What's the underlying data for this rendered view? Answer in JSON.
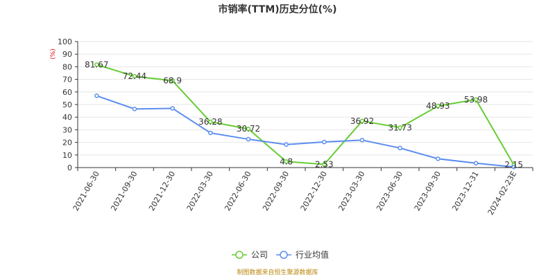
{
  "colors": {
    "company": "#66cc33",
    "industry": "#5b8def",
    "grid": "#e6e6e6",
    "axis": "#333333",
    "unit": "#e60000",
    "source": "#b8860b"
  },
  "chart_data": {
    "type": "line",
    "title": "市销率(TTM)历史分位(%)",
    "ylabel": "(%)",
    "xlabel": "",
    "ylim": [
      0,
      100
    ],
    "yticks": [
      0,
      10,
      20,
      30,
      40,
      50,
      60,
      70,
      80,
      90,
      100
    ],
    "grid": true,
    "legend_position": "bottom-center",
    "categories": [
      "2021-06-30",
      "2021-09-30",
      "2021-12-30",
      "2022-03-30",
      "2022-06-30",
      "2022-09-30",
      "2022-12-30",
      "2023-03-30",
      "2023-06-30",
      "2023-09-30",
      "2023-12-31",
      "2024-02-23E"
    ],
    "series": [
      {
        "name": "公司",
        "color": "#66cc33",
        "values": [
          81.67,
          72.44,
          68.9,
          36.28,
          30.72,
          4.8,
          2.53,
          36.92,
          31.73,
          48.93,
          53.98,
          2.15
        ],
        "labels": [
          "81.67",
          "72.44",
          "68.9",
          "36.28",
          "30.72",
          "4.8",
          "2.53",
          "36.92",
          "31.73",
          "48.93",
          "53.98",
          "2.15"
        ]
      },
      {
        "name": "行业均值",
        "color": "#5b8def",
        "values": [
          57,
          46.5,
          47,
          27.5,
          22.5,
          18.3,
          20.3,
          21.8,
          15.5,
          7,
          3.5,
          0.5
        ]
      }
    ],
    "source": "制图数据来自恒生聚源数据库"
  }
}
